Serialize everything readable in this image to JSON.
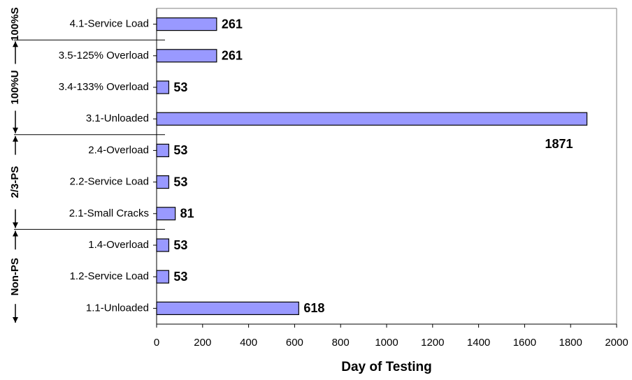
{
  "chart_data": {
    "type": "bar",
    "orientation": "horizontal",
    "x_label": "Day of Testing",
    "categories": [
      "4.1-Service Load",
      "3.5-125% Overload",
      "3.4-133% Overload",
      "3.1-Unloaded",
      "2.4-Overload",
      "2.2-Service Load",
      "2.1-Small Cracks",
      "1.4-Overload",
      "1.2-Service Load",
      "1.1-Unloaded"
    ],
    "values": [
      261,
      261,
      53,
      1871,
      53,
      53,
      81,
      53,
      53,
      618
    ],
    "color": "#9999ff",
    "xlim": [
      0,
      2000
    ],
    "xticks": [
      0,
      200,
      400,
      600,
      800,
      1000,
      1200,
      1400,
      1600,
      1800,
      2000
    ],
    "groups": [
      {
        "label": "100%S",
        "size": 1
      },
      {
        "label": "100%U",
        "size": 3
      },
      {
        "label": "2/3-PS",
        "size": 3
      },
      {
        "label": "Non-PS",
        "size": 3
      }
    ]
  }
}
